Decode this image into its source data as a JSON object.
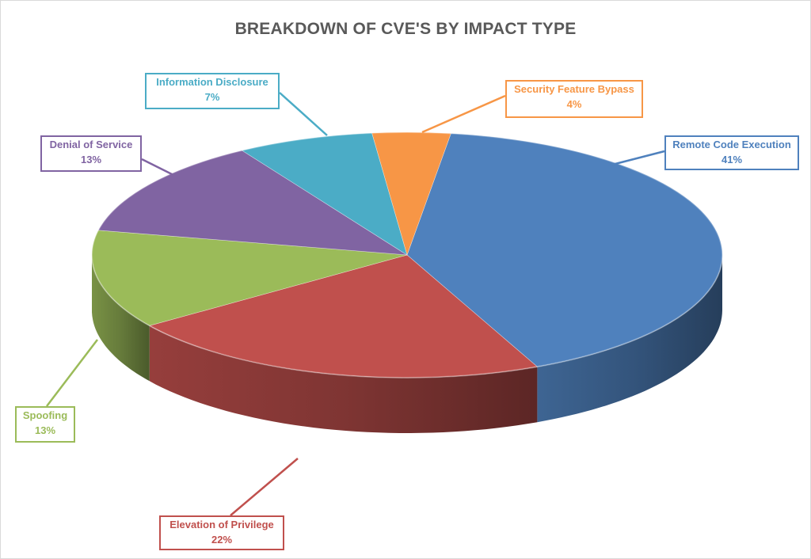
{
  "chart_data": {
    "type": "pie",
    "title": "BREAKDOWN OF CVE'S BY IMPACT TYPE",
    "slices": [
      {
        "label": "Remote Code Execution",
        "value": 41,
        "value_label": "41%",
        "color": "#4F81BD"
      },
      {
        "label": "Elevation of Privilege",
        "value": 22,
        "value_label": "22%",
        "color": "#C0504D"
      },
      {
        "label": "Spoofing",
        "value": 13,
        "value_label": "13%",
        "color": "#9BBB59"
      },
      {
        "label": "Denial of Service",
        "value": 13,
        "value_label": "13%",
        "color": "#8064A2"
      },
      {
        "label": "Information Disclosure",
        "value": 7,
        "value_label": "7%",
        "color": "#4BACC6"
      },
      {
        "label": "Security Feature Bypass",
        "value": 4,
        "value_label": "4%",
        "color": "#F79646"
      }
    ],
    "style": "3d-pie",
    "data_labels": "callouts"
  }
}
